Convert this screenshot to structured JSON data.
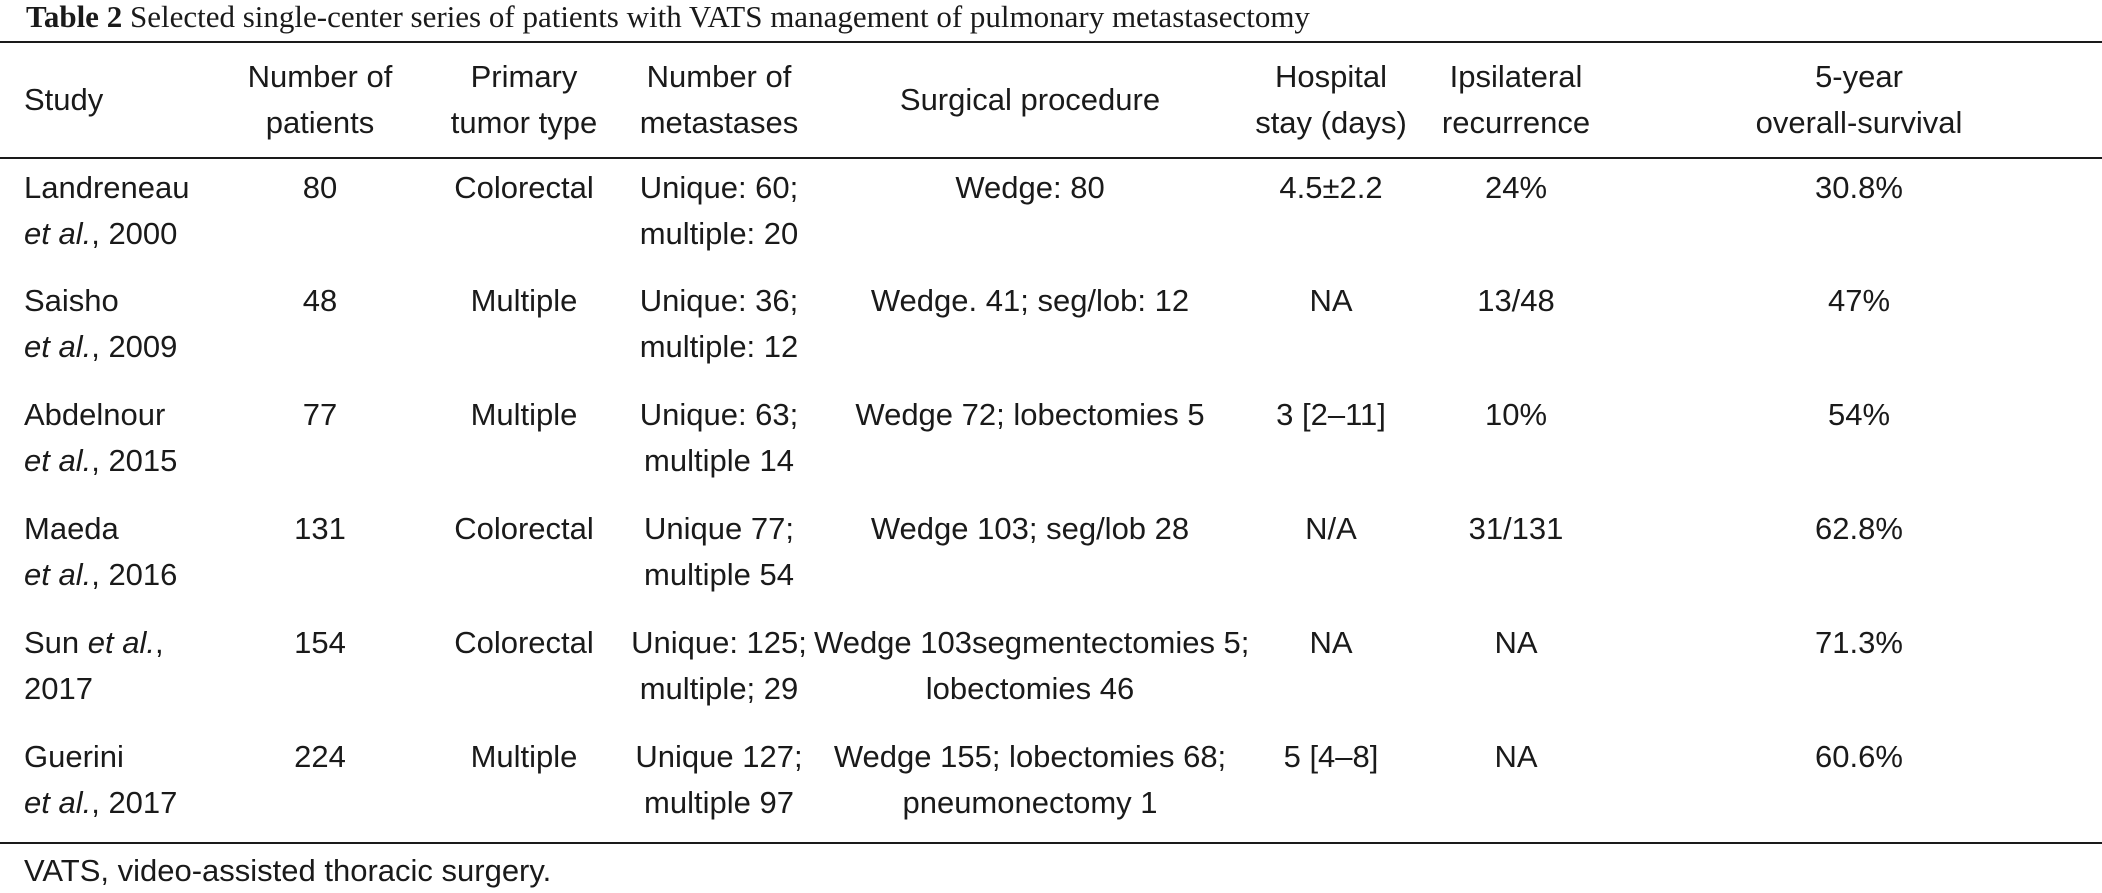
{
  "caption": {
    "label": "Table 2",
    "text": "Selected single-center series of patients with VATS management of pulmonary metastasectomy"
  },
  "headers": [
    [
      "Study"
    ],
    [
      "Number of",
      "patients"
    ],
    [
      "Primary",
      "tumor type"
    ],
    [
      "Number of",
      "metastases"
    ],
    [
      "Surgical procedure"
    ],
    [
      "Hospital",
      "stay (days)"
    ],
    [
      "Ipsilateral",
      "recurrence"
    ],
    [
      "5-year",
      "overall-survival"
    ]
  ],
  "rows": [
    {
      "study": {
        "author": "Landreneau",
        "etal": "et al.",
        "year": ", 2000"
      },
      "patients": "80",
      "tumor": "Colorectal",
      "metastases": [
        "Unique: 60;",
        "multiple: 20"
      ],
      "procedure": [
        "Wedge: 80"
      ],
      "stay": "4.5±2.2",
      "recurrence": "24%",
      "survival": "30.8%"
    },
    {
      "study": {
        "author": "Saisho",
        "etal": "et al.",
        "year": ", 2009"
      },
      "patients": "48",
      "tumor": "Multiple",
      "metastases": [
        "Unique: 36;",
        "multiple: 12"
      ],
      "procedure": [
        "Wedge. 41; seg/lob: 12"
      ],
      "stay": "NA",
      "recurrence": "13/48",
      "survival": "47%"
    },
    {
      "study": {
        "author": "Abdelnour",
        "etal": "et al.",
        "year": ", 2015"
      },
      "patients": "77",
      "tumor": "Multiple",
      "metastases": [
        "Unique: 63;",
        "multiple 14"
      ],
      "procedure": [
        "Wedge 72; lobectomies 5"
      ],
      "stay": "3 [2–11]",
      "recurrence": "10%",
      "survival": "54%"
    },
    {
      "study": {
        "author": "Maeda",
        "etal": "et al.",
        "year": ", 2016"
      },
      "patients": "131",
      "tumor": "Colorectal",
      "metastases": [
        "Unique 77;",
        "multiple 54"
      ],
      "procedure": [
        "Wedge 103; seg/lob 28"
      ],
      "stay": "N/A",
      "recurrence": "31/131",
      "survival": "62.8%"
    },
    {
      "study": {
        "author": "Sun",
        "etal": "et al.",
        "year": "2017"
      },
      "patients": "154",
      "tumor": "Colorectal",
      "metastases": [
        "Unique: 125;",
        "multiple; 29"
      ],
      "procedure": [
        "Wedge 103segmentectomies 5;",
        "lobectomies 46"
      ],
      "stay": "NA",
      "recurrence": "NA",
      "survival": "71.3%"
    },
    {
      "study": {
        "author": "Guerini",
        "etal": "et al.",
        "year": ", 2017"
      },
      "patients": "224",
      "tumor": "Multiple",
      "metastases": [
        "Unique 127;",
        "multiple 97"
      ],
      "procedure": [
        "Wedge 155; lobectomies 68;",
        "pneumonectomy 1"
      ],
      "stay": "5 [4–8]",
      "recurrence": "NA",
      "survival": "60.6%"
    }
  ],
  "footnote": "VATS, video-assisted thoracic surgery."
}
